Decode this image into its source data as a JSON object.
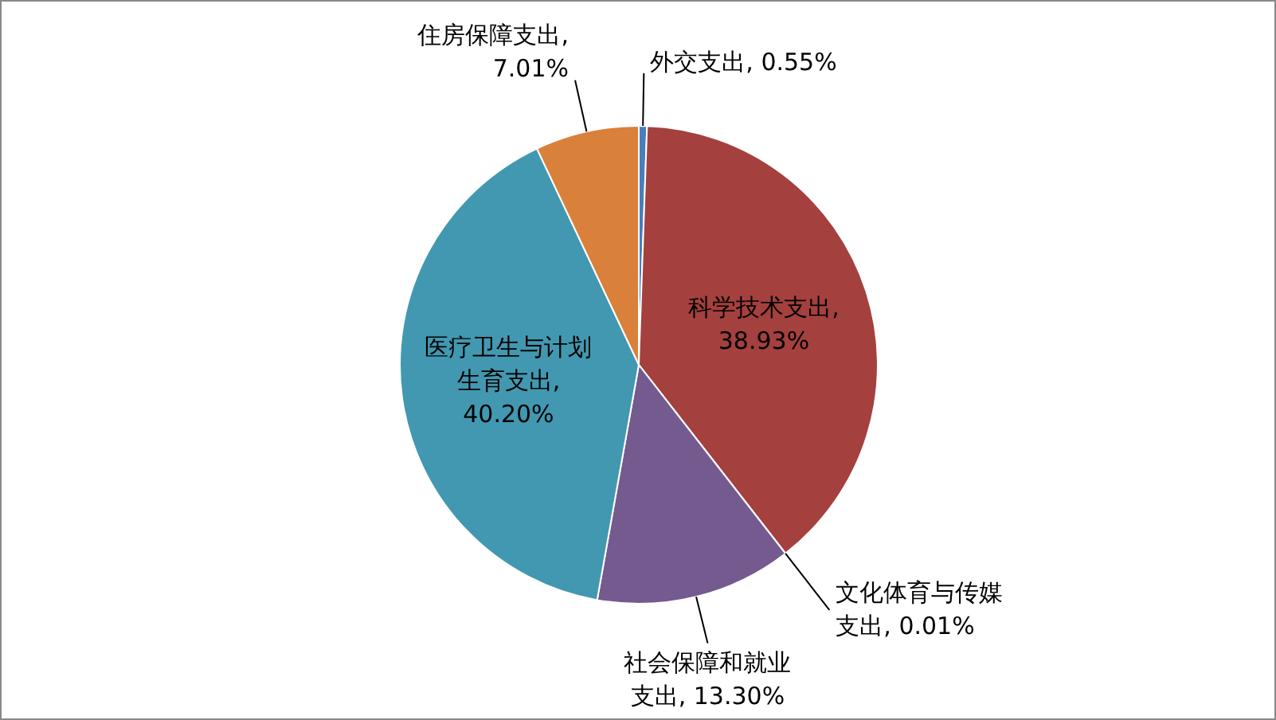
{
  "chart_data": {
    "type": "pie",
    "categories": [
      "外交支出",
      "科学技术支出",
      "文化体育与传媒支出",
      "社会保障和就业支出",
      "医疗卫生与计划生育支出",
      "住房保障支出"
    ],
    "values": [
      0.55,
      38.93,
      0.01,
      13.3,
      40.2,
      7.01
    ],
    "value_labels": [
      ", 0.55%",
      ", 38.93%",
      ", 0.01%",
      ", 13.30%",
      ", 40.20%",
      ", 7.01%"
    ],
    "colors": [
      "#4a7ebb",
      "#a4403e",
      "#8b3a36",
      "#745a8f",
      "#4298b0",
      "#d9803a"
    ]
  }
}
